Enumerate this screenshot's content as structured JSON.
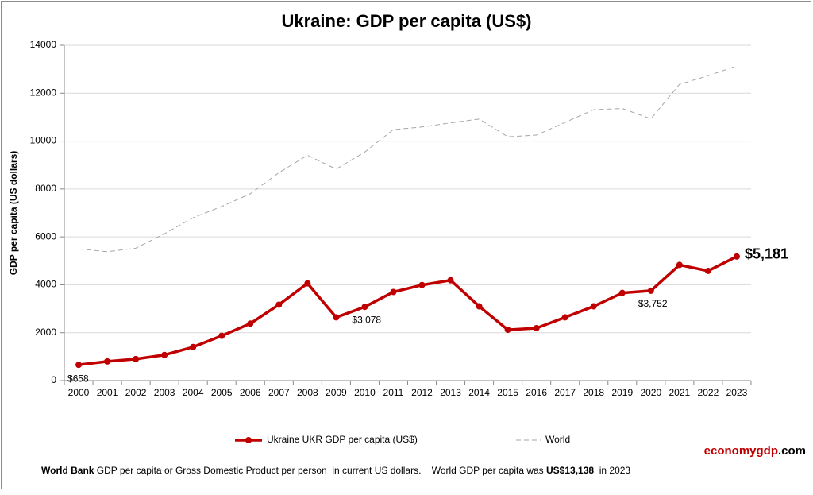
{
  "chart_data": {
    "type": "line",
    "title": "Ukraine:  GDP per capita (US$)",
    "y_label": "GDP per capita (US dollars)",
    "categories": [
      "2000",
      "2001",
      "2002",
      "2003",
      "2004",
      "2005",
      "2006",
      "2007",
      "2008",
      "2009",
      "2010",
      "2011",
      "2012",
      "2013",
      "2014",
      "2015",
      "2016",
      "2017",
      "2018",
      "2019",
      "2020",
      "2021",
      "2022",
      "2023"
    ],
    "series": [
      {
        "name": "Ukraine UKR GDP per capita (US$)",
        "color": "#c00000",
        "values": [
          658,
          800,
          900,
          1070,
          1400,
          1870,
          2380,
          3170,
          4060,
          2640,
          3078,
          3700,
          3990,
          4190,
          3100,
          2120,
          2190,
          2640,
          3100,
          3660,
          3752,
          4830,
          4580,
          5181
        ],
        "value_labels": [
          "$658",
          null,
          null,
          null,
          null,
          null,
          null,
          null,
          null,
          null,
          "$3,078",
          null,
          null,
          null,
          null,
          null,
          null,
          null,
          null,
          null,
          "$3,752",
          null,
          null,
          "$5,181"
        ]
      },
      {
        "name": "World",
        "color": "#a6a6a6",
        "dashed": true,
        "values": [
          5500,
          5380,
          5530,
          6130,
          6800,
          7270,
          7800,
          8680,
          9410,
          8830,
          9540,
          10480,
          10590,
          10760,
          10920,
          10180,
          10250,
          10780,
          11310,
          11360,
          10930,
          12370,
          12730,
          13138
        ]
      }
    ],
    "ylim": [
      0,
      14000
    ],
    "yticks": [
      0,
      2000,
      4000,
      6000,
      8000,
      10000,
      12000,
      14000
    ],
    "grid": true,
    "footer": [
      "World Bank",
      " GDP per capita or Gross Domestic Product per person  in current US dollars.    World GDP per capita was ",
      "US$13,138",
      "  in 2023"
    ],
    "brand": [
      "economygdp",
      ".com"
    ]
  }
}
